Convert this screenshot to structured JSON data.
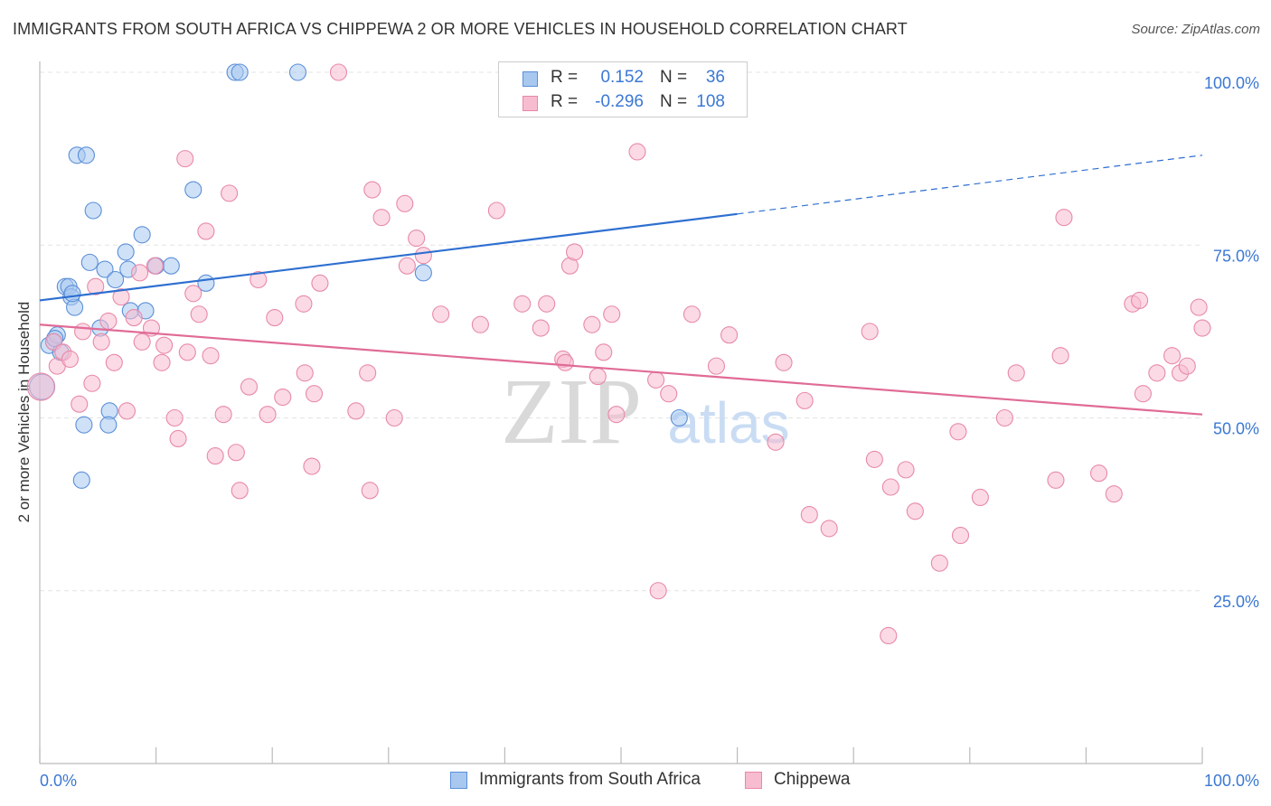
{
  "title": "IMMIGRANTS FROM SOUTH AFRICA VS CHIPPEWA 2 OR MORE VEHICLES IN HOUSEHOLD CORRELATION CHART",
  "source": "Source: ZipAtlas.com",
  "watermark": {
    "zip": "ZIP",
    "atlas": "atlas"
  },
  "legend": {
    "rows": [
      {
        "r_label": "R =",
        "r_value": "0.152",
        "n_label": "N =",
        "n_value": "36"
      },
      {
        "r_label": "R =",
        "r_value": "-0.296",
        "n_label": "N =",
        "n_value": "108"
      }
    ]
  },
  "colors": {
    "blue_fill": "#a8c8f0",
    "blue_stroke": "#5b8fd8",
    "blue_line": "#2e6fd0",
    "pink_fill": "#f7bcd0",
    "pink_stroke": "#e889a8",
    "pink_line": "#e06b96",
    "tick_label": "#3b78d4",
    "grid": "#e3e3e3"
  },
  "chart_data": {
    "type": "scatter",
    "title": "IMMIGRANTS FROM SOUTH AFRICA VS CHIPPEWA 2 OR MORE VEHICLES IN HOUSEHOLD CORRELATION CHART",
    "xlabel": "",
    "ylabel": "2 or more Vehicles in Household",
    "xlim": [
      0,
      100
    ],
    "ylim": [
      0,
      100
    ],
    "x_tick_labels": [
      "0.0%",
      "100.0%"
    ],
    "y_ticks": [
      25,
      50,
      75,
      100
    ],
    "y_tick_labels": [
      "25.0%",
      "50.0%",
      "75.0%",
      "100.0%"
    ],
    "grid": true,
    "legend_position": "top-center",
    "series": [
      {
        "name": "Immigrants from South Africa",
        "r": 0.152,
        "n": 36,
        "trend": {
          "x0": 0,
          "y0": 67.0,
          "x1": 60,
          "y1": 79.5,
          "dashed_to_x": 100,
          "dashed_to_y": 88.0
        },
        "points": [
          [
            0.2,
            54.5,
            14
          ],
          [
            0.8,
            60.5,
            9
          ],
          [
            1.2,
            61.0,
            9
          ],
          [
            1.5,
            62.0,
            9
          ],
          [
            1.8,
            59.5,
            9
          ],
          [
            2.2,
            69.0,
            9
          ],
          [
            2.5,
            69.0,
            9
          ],
          [
            2.7,
            67.5,
            9
          ],
          [
            3.0,
            66.0,
            9
          ],
          [
            3.2,
            88.0,
            9
          ],
          [
            3.8,
            49.0,
            9
          ],
          [
            3.6,
            41.0,
            9
          ],
          [
            4.0,
            88.0,
            9
          ],
          [
            4.3,
            72.5,
            9
          ],
          [
            4.6,
            80.0,
            9
          ],
          [
            5.2,
            63.0,
            9
          ],
          [
            5.6,
            71.5,
            9
          ],
          [
            6.0,
            51.0,
            9
          ],
          [
            5.9,
            49.0,
            9
          ],
          [
            6.5,
            70.0,
            9
          ],
          [
            7.4,
            74.0,
            9
          ],
          [
            7.6,
            71.5,
            9
          ],
          [
            7.8,
            65.5,
            9
          ],
          [
            8.8,
            76.5,
            9
          ],
          [
            9.1,
            65.5,
            9
          ],
          [
            10.0,
            72.0,
            9
          ],
          [
            11.3,
            72.0,
            9
          ],
          [
            13.2,
            83.0,
            9
          ],
          [
            14.3,
            69.5,
            9
          ],
          [
            16.8,
            100.0,
            9
          ],
          [
            17.2,
            100.0,
            9
          ],
          [
            22.2,
            100.0,
            9
          ],
          [
            33.0,
            71.0,
            9
          ],
          [
            55.0,
            50.0,
            9
          ],
          [
            1.3,
            61.5,
            9
          ],
          [
            2.8,
            68.0,
            9
          ]
        ]
      },
      {
        "name": "Chippewa",
        "r": -0.296,
        "n": 108,
        "trend": {
          "x0": 0,
          "y0": 63.5,
          "x1": 100,
          "y1": 50.5
        },
        "points": [
          [
            0.1,
            54.5,
            15
          ],
          [
            1.2,
            61.0,
            9
          ],
          [
            1.5,
            57.5,
            9
          ],
          [
            2.0,
            59.5,
            9
          ],
          [
            2.6,
            58.5,
            9
          ],
          [
            3.4,
            52.0,
            9
          ],
          [
            3.7,
            62.5,
            9
          ],
          [
            4.5,
            55.0,
            9
          ],
          [
            4.8,
            69.0,
            9
          ],
          [
            5.3,
            61.0,
            9
          ],
          [
            5.9,
            64.0,
            9
          ],
          [
            6.4,
            58.0,
            9
          ],
          [
            7.0,
            67.5,
            9
          ],
          [
            7.5,
            51.0,
            9
          ],
          [
            8.1,
            64.5,
            9
          ],
          [
            8.6,
            71.0,
            9
          ],
          [
            8.8,
            61.0,
            9
          ],
          [
            9.6,
            63.0,
            9
          ],
          [
            9.9,
            72.0,
            9
          ],
          [
            10.5,
            58.0,
            9
          ],
          [
            10.7,
            60.5,
            9
          ],
          [
            11.6,
            50.0,
            9
          ],
          [
            11.9,
            47.0,
            9
          ],
          [
            12.5,
            87.5,
            9
          ],
          [
            12.7,
            59.5,
            9
          ],
          [
            13.2,
            68.0,
            9
          ],
          [
            13.7,
            65.0,
            9
          ],
          [
            14.3,
            77.0,
            9
          ],
          [
            14.7,
            59.0,
            9
          ],
          [
            15.1,
            44.5,
            9
          ],
          [
            15.8,
            50.5,
            9
          ],
          [
            16.3,
            82.5,
            9
          ],
          [
            16.9,
            45.0,
            9
          ],
          [
            17.2,
            39.5,
            9
          ],
          [
            18.0,
            54.5,
            9
          ],
          [
            18.8,
            70.0,
            9
          ],
          [
            19.6,
            50.5,
            9
          ],
          [
            20.2,
            64.5,
            9
          ],
          [
            20.9,
            53.0,
            9
          ],
          [
            22.7,
            66.5,
            9
          ],
          [
            22.8,
            56.5,
            9
          ],
          [
            23.4,
            43.0,
            9
          ],
          [
            23.6,
            53.5,
            9
          ],
          [
            24.1,
            69.5,
            9
          ],
          [
            25.7,
            100.0,
            9
          ],
          [
            27.2,
            51.0,
            9
          ],
          [
            28.2,
            56.5,
            9
          ],
          [
            28.4,
            39.5,
            9
          ],
          [
            28.6,
            83.0,
            9
          ],
          [
            29.4,
            79.0,
            9
          ],
          [
            30.5,
            50.0,
            9
          ],
          [
            31.4,
            81.0,
            9
          ],
          [
            31.6,
            72.0,
            9
          ],
          [
            32.4,
            76.0,
            9
          ],
          [
            33.0,
            73.5,
            9
          ],
          [
            34.5,
            65.0,
            9
          ],
          [
            37.9,
            63.5,
            9
          ],
          [
            39.3,
            80.0,
            9
          ],
          [
            41.5,
            66.5,
            9
          ],
          [
            43.1,
            63.0,
            9
          ],
          [
            43.6,
            66.5,
            9
          ],
          [
            45.0,
            58.5,
            9
          ],
          [
            45.2,
            58.0,
            9
          ],
          [
            45.6,
            72.0,
            9
          ],
          [
            46.0,
            74.0,
            9
          ],
          [
            47.5,
            63.5,
            9
          ],
          [
            48.0,
            56.0,
            9
          ],
          [
            48.5,
            59.5,
            9
          ],
          [
            49.2,
            65.0,
            9
          ],
          [
            49.6,
            50.5,
            9
          ],
          [
            51.4,
            88.5,
            9
          ],
          [
            53.0,
            55.5,
            9
          ],
          [
            53.2,
            25.0,
            9
          ],
          [
            54.1,
            53.5,
            9
          ],
          [
            56.1,
            65.0,
            9
          ],
          [
            58.2,
            57.5,
            9
          ],
          [
            59.3,
            62.0,
            9
          ],
          [
            63.3,
            46.5,
            9
          ],
          [
            64.0,
            58.0,
            9
          ],
          [
            65.8,
            52.5,
            9
          ],
          [
            66.2,
            36.0,
            9
          ],
          [
            67.9,
            34.0,
            9
          ],
          [
            71.4,
            62.5,
            9
          ],
          [
            71.8,
            44.0,
            9
          ],
          [
            73.2,
            40.0,
            9
          ],
          [
            74.5,
            42.5,
            9
          ],
          [
            75.3,
            36.5,
            9
          ],
          [
            77.4,
            29.0,
            9
          ],
          [
            79.0,
            48.0,
            9
          ],
          [
            79.2,
            33.0,
            9
          ],
          [
            80.9,
            38.5,
            9
          ],
          [
            83.0,
            50.0,
            9
          ],
          [
            84.0,
            56.5,
            9
          ],
          [
            87.4,
            41.0,
            9
          ],
          [
            87.8,
            59.0,
            9
          ],
          [
            88.1,
            79.0,
            9
          ],
          [
            91.1,
            42.0,
            9
          ],
          [
            92.4,
            39.0,
            9
          ],
          [
            94.0,
            66.5,
            9
          ],
          [
            94.6,
            67.0,
            9
          ],
          [
            94.9,
            53.5,
            9
          ],
          [
            96.1,
            56.5,
            9
          ],
          [
            97.4,
            59.0,
            9
          ],
          [
            98.1,
            56.5,
            9
          ],
          [
            98.7,
            57.5,
            9
          ],
          [
            99.7,
            66.0,
            9
          ],
          [
            100.0,
            63.0,
            9
          ],
          [
            73.0,
            18.5,
            9
          ]
        ]
      }
    ]
  }
}
